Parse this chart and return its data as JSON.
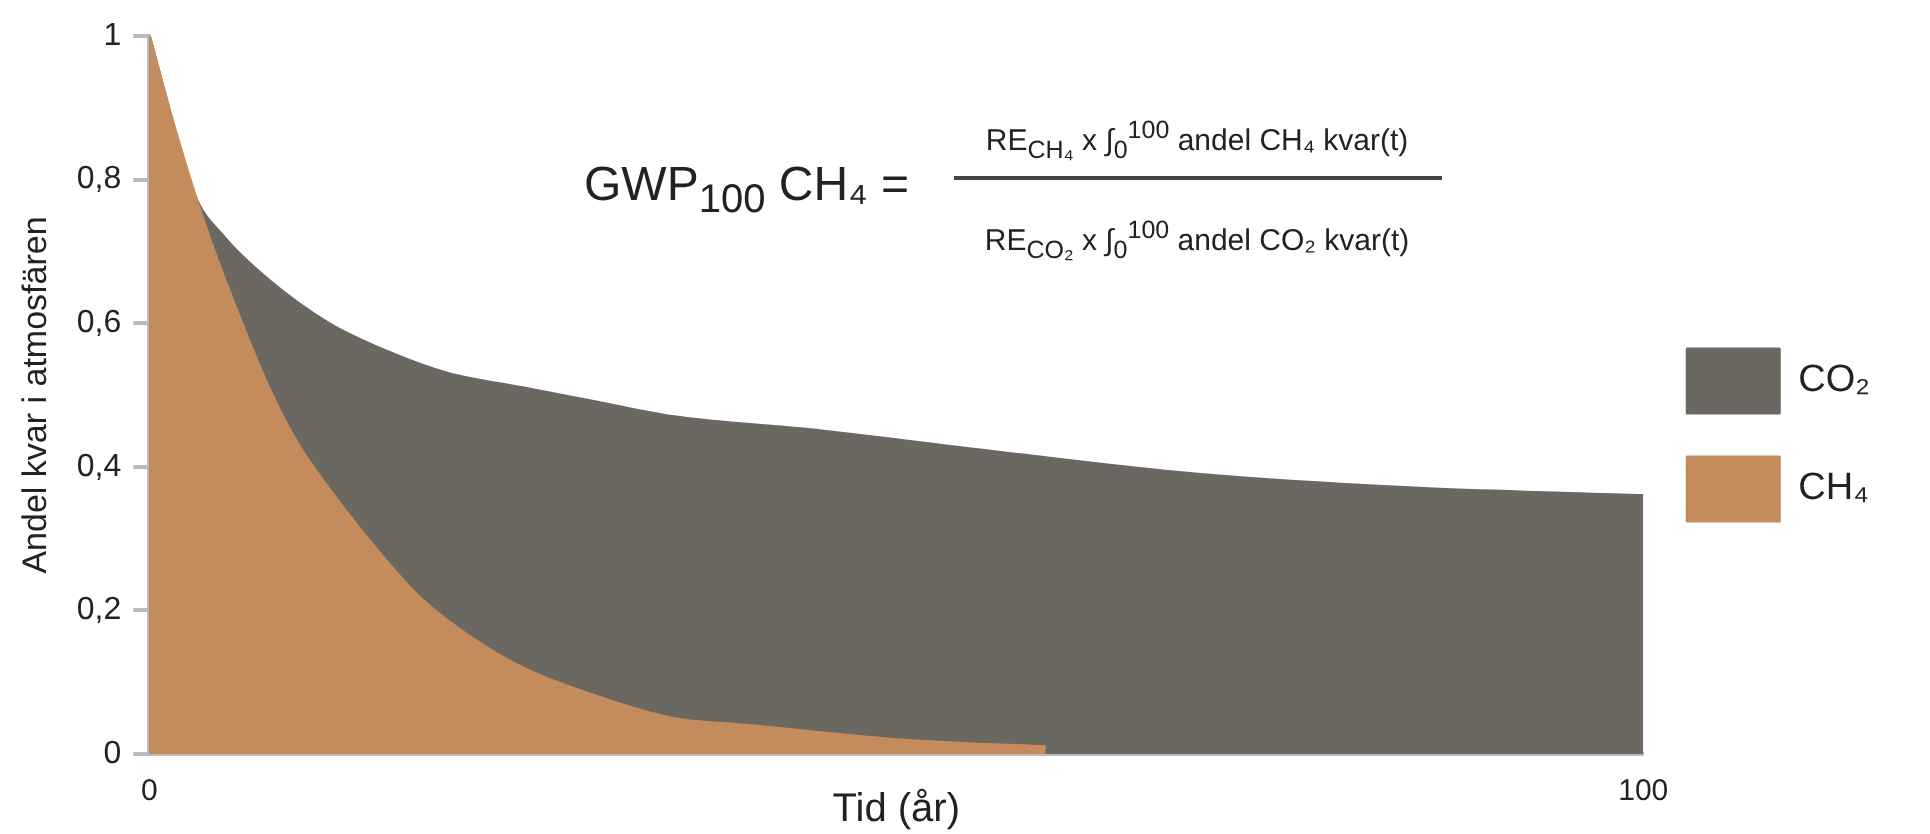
{
  "chart_data": {
    "type": "area",
    "xlabel": "Tid (år)",
    "ylabel": "Andel kvar i atmosfären",
    "xlim": [
      0,
      100
    ],
    "xticks": [
      0,
      100
    ],
    "ylim": [
      0,
      1
    ],
    "yticks": [
      0,
      {
        "value": 0.2,
        "label": "0,2"
      },
      {
        "value": 0.4,
        "label": "0,4"
      },
      {
        "value": 0.6,
        "label": "0,6"
      },
      {
        "value": 0.8,
        "label": "0,8"
      },
      1
    ],
    "series": [
      {
        "name": "CO₂",
        "color": "#6b6862",
        "x": [
          0,
          3,
          5,
          8,
          12,
          16,
          20,
          25,
          30,
          35,
          45,
          57,
          70,
          85,
          100
        ],
        "values": [
          1,
          0.78,
          0.72,
          0.66,
          0.6,
          0.56,
          0.53,
          0.51,
          0.49,
          0.47,
          0.45,
          0.42,
          0.39,
          0.37,
          0.36
        ]
      },
      {
        "name": "CH₄",
        "color": "#c48b5c",
        "x": [
          0,
          2,
          4,
          6,
          8,
          10,
          12,
          15,
          18,
          21,
          25,
          30,
          35,
          40,
          50,
          60
        ],
        "values": [
          1,
          0.85,
          0.72,
          0.61,
          0.51,
          0.43,
          0.37,
          0.29,
          0.22,
          0.17,
          0.12,
          0.08,
          0.05,
          0.04,
          0.02,
          0.01
        ]
      }
    ],
    "annotations": [
      "GWP$_{100}$ CH₄ =",
      "RE$_{CH₄}$ x ∫$_{0}$$^{100}$ andel CH₄ kvar(t)",
      "RE$_{CO₂}$ x ∫$_{0}$$^{100}$ andel CO₂ kvar(t)"
    ],
    "grid": false,
    "legend": "right",
    "marker": "none"
  }
}
